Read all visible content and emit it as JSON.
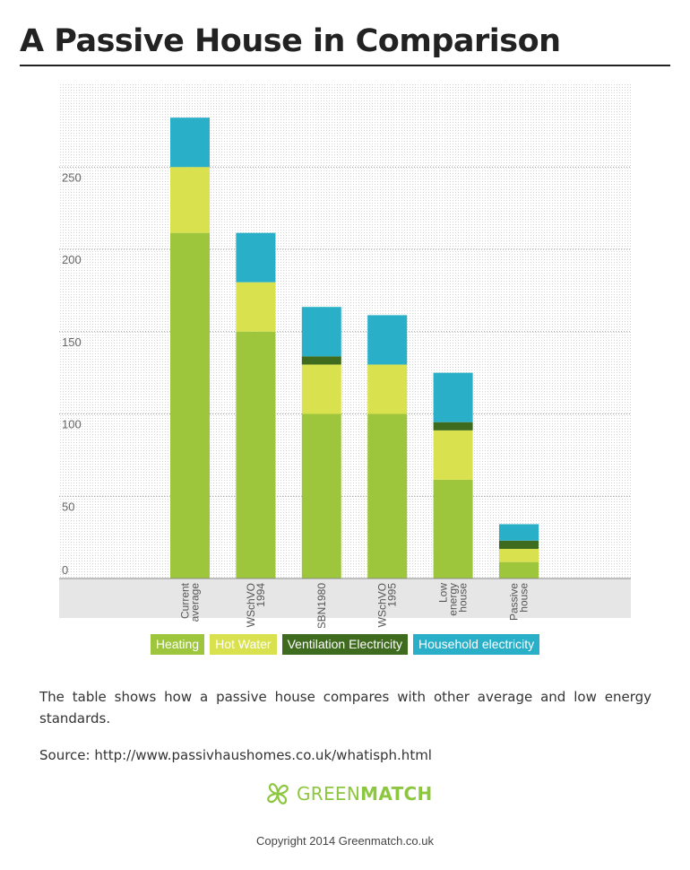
{
  "page": {
    "title": "A Passive House in Comparison",
    "description": "The table shows how a passive house compares with other average and low energy standards.",
    "source": "Source: http://www.passivhaushomes.co.uk/whatisph.html",
    "logo": {
      "text_light": "GREEN",
      "text_bold": "MATCH",
      "icon": "clover-leaf-icon"
    },
    "copyright": "Copyright 2014 Greenmatch.co.uk"
  },
  "chart_data": {
    "type": "bar",
    "stacked": true,
    "categories": [
      [
        "Current",
        "average"
      ],
      [
        "WSchVO",
        "1994"
      ],
      [
        "SBN1980"
      ],
      [
        "WSchVO",
        "1995"
      ],
      [
        "Low",
        "energy",
        "house"
      ],
      [
        "Passive",
        "house"
      ]
    ],
    "series": [
      {
        "name": "Heating",
        "color": "#9dc63d",
        "values": [
          210,
          150,
          100,
          100,
          60,
          10
        ]
      },
      {
        "name": "Hot Water",
        "color": "#d9e24e",
        "values": [
          40,
          30,
          30,
          30,
          30,
          8
        ]
      },
      {
        "name": "Ventilation Electricity",
        "color": "#3f6b1f",
        "values": [
          0,
          0,
          5,
          0,
          5,
          5
        ]
      },
      {
        "name": "Household electricity",
        "color": "#29afc8",
        "values": [
          30,
          30,
          30,
          30,
          30,
          10
        ]
      }
    ],
    "yticks": [
      0,
      50,
      100,
      150,
      200,
      250
    ],
    "ylim": [
      0,
      300
    ],
    "grid": true,
    "legend_position": "bottom"
  }
}
